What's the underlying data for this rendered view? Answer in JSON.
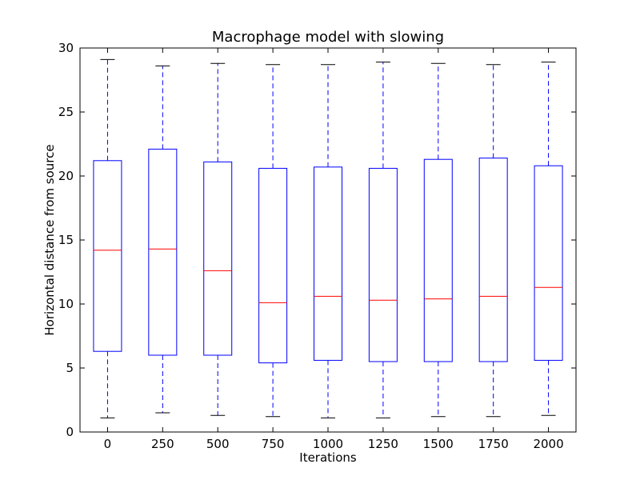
{
  "chart_data": {
    "type": "box",
    "title": "Macrophage model with slowing",
    "xlabel": "Iterations",
    "ylabel": "Horizontal distance from source",
    "ylim": [
      0,
      30
    ],
    "yticks": [
      0,
      5,
      10,
      15,
      20,
      25,
      30
    ],
    "grid": false,
    "categories": [
      "0",
      "250",
      "500",
      "750",
      "1000",
      "1250",
      "1500",
      "1750",
      "2000"
    ],
    "boxes": [
      {
        "whisker_low": 1.1,
        "q1": 6.3,
        "median": 14.2,
        "q3": 21.2,
        "whisker_high": 29.1
      },
      {
        "whisker_low": 1.5,
        "q1": 6.0,
        "median": 14.3,
        "q3": 22.1,
        "whisker_high": 28.6
      },
      {
        "whisker_low": 1.3,
        "q1": 6.0,
        "median": 12.6,
        "q3": 21.1,
        "whisker_high": 28.8
      },
      {
        "whisker_low": 1.2,
        "q1": 5.4,
        "median": 10.1,
        "q3": 20.6,
        "whisker_high": 28.7
      },
      {
        "whisker_low": 1.1,
        "q1": 5.6,
        "median": 10.6,
        "q3": 20.7,
        "whisker_high": 28.7
      },
      {
        "whisker_low": 1.1,
        "q1": 5.5,
        "median": 10.3,
        "q3": 20.6,
        "whisker_high": 28.9
      },
      {
        "whisker_low": 1.2,
        "q1": 5.5,
        "median": 10.4,
        "q3": 21.3,
        "whisker_high": 28.8
      },
      {
        "whisker_low": 1.2,
        "q1": 5.5,
        "median": 10.6,
        "q3": 21.4,
        "whisker_high": 28.7
      },
      {
        "whisker_low": 1.3,
        "q1": 5.6,
        "median": 11.3,
        "q3": 20.8,
        "whisker_high": 28.9
      }
    ],
    "colors": {
      "box": "#0000ff",
      "median": "#ff0000",
      "caps": "#000000",
      "frame": "#000000"
    }
  }
}
